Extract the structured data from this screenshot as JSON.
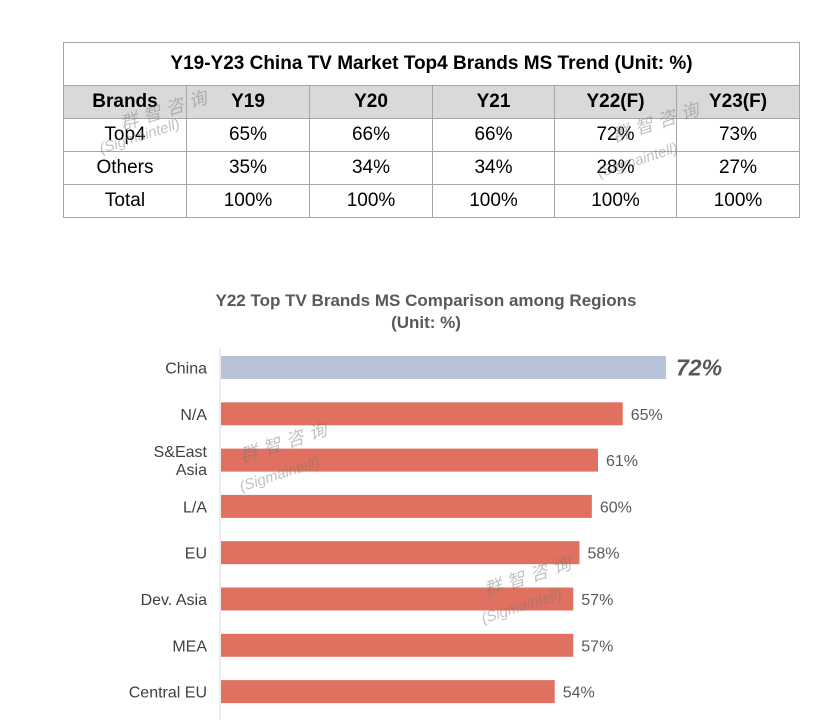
{
  "table": {
    "title": "Y19-Y23 China TV Market Top4 Brands MS Trend (Unit: %)",
    "headers": [
      "Brands",
      "Y19",
      "Y20",
      "Y21",
      "Y22(F)",
      "Y23(F)"
    ],
    "rows": [
      [
        "Top4",
        "65%",
        "66%",
        "66%",
        "72%",
        "73%"
      ],
      [
        "Others",
        "35%",
        "34%",
        "34%",
        "28%",
        "27%"
      ],
      [
        "Total",
        "100%",
        "100%",
        "100%",
        "100%",
        "100%"
      ]
    ]
  },
  "watermark": {
    "cn": "群智咨询",
    "en": "(Sigmaintell)"
  },
  "chart_data": {
    "type": "bar",
    "orientation": "horizontal",
    "title": "Y22 Top TV Brands MS Comparison among Regions",
    "subtitle": "(Unit: %)",
    "categories": [
      "China",
      "N/A",
      "S&East Asia",
      "L/A",
      "EU",
      "Dev. Asia",
      "MEA",
      "Central EU"
    ],
    "category_lines": [
      [
        "China"
      ],
      [
        "N/A"
      ],
      [
        "S&East",
        "Asia"
      ],
      [
        "L/A"
      ],
      [
        "EU"
      ],
      [
        "Dev. Asia"
      ],
      [
        "MEA"
      ],
      [
        "Central EU"
      ]
    ],
    "values": [
      72,
      65,
      61,
      60,
      58,
      57,
      57,
      54
    ],
    "labels": [
      "72%",
      "65%",
      "61%",
      "60%",
      "58%",
      "57%",
      "57%",
      "54%"
    ],
    "colors": [
      "#b8c2d6",
      "#e07060",
      "#e07060",
      "#e07060",
      "#e07060",
      "#e07060",
      "#e07060",
      "#e07060"
    ],
    "xlim": [
      0,
      72
    ],
    "grid": false,
    "legend": "none"
  }
}
